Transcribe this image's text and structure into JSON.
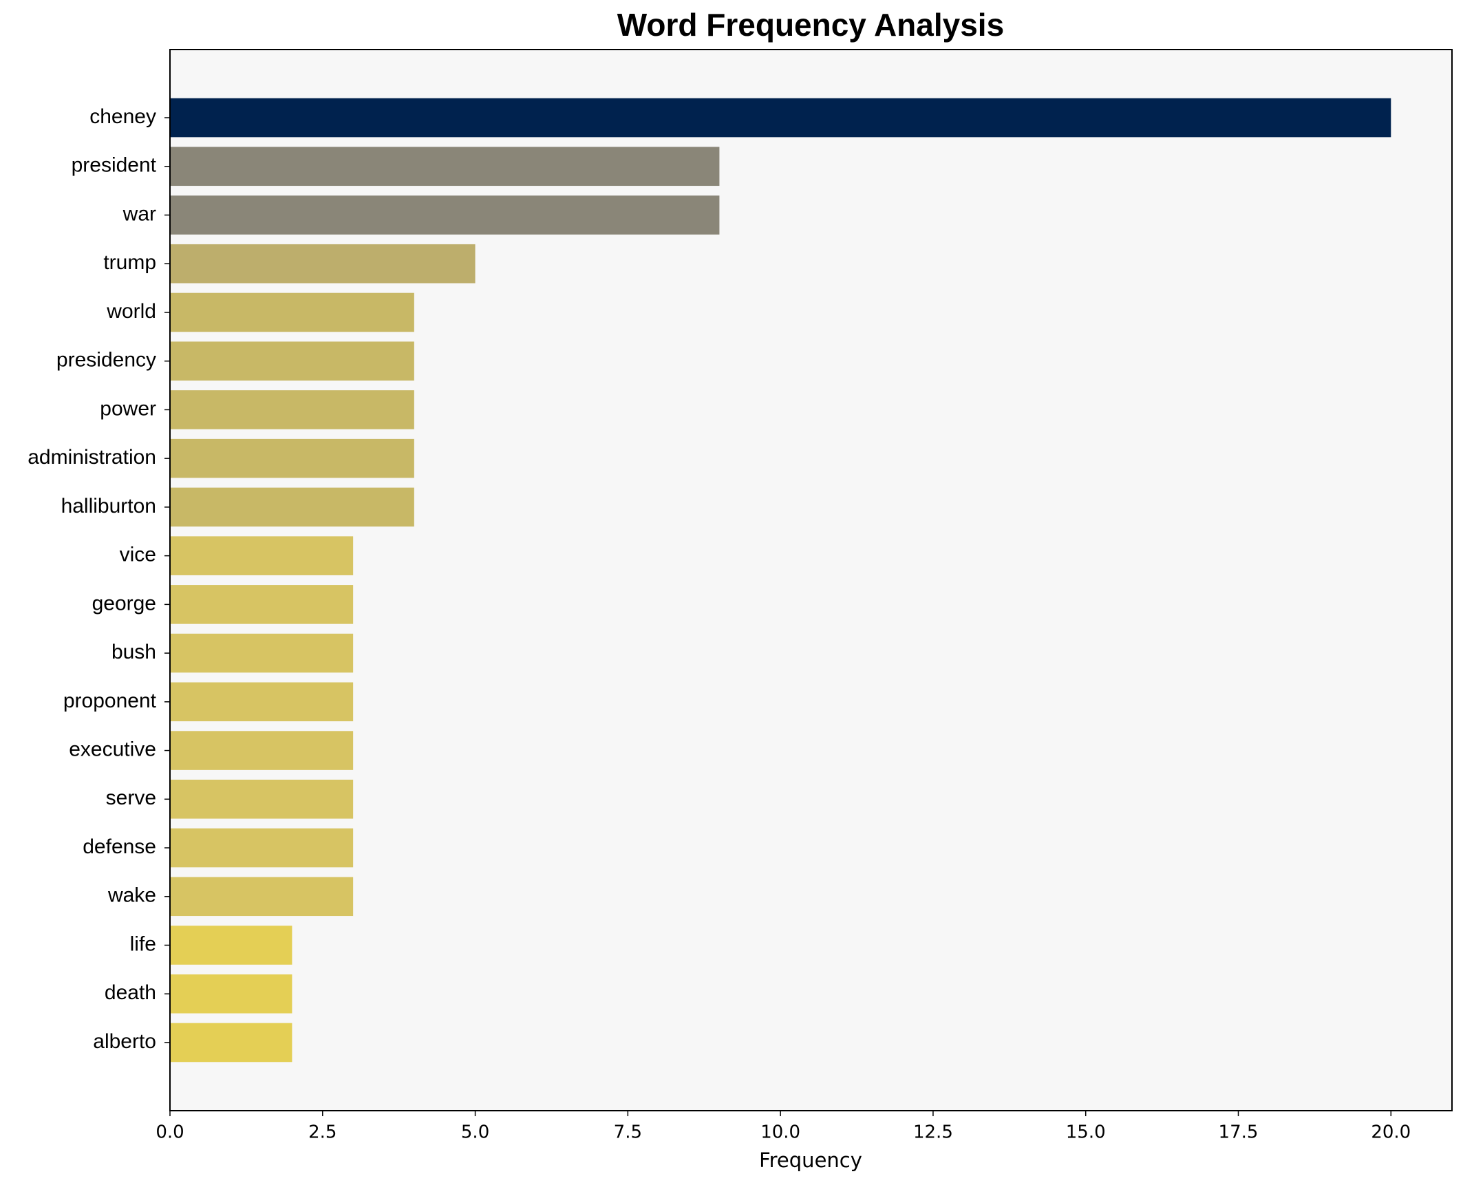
{
  "chart_data": {
    "type": "barh",
    "title": "Word Frequency Analysis",
    "xlabel": "Frequency",
    "categories": [
      "cheney",
      "president",
      "war",
      "trump",
      "world",
      "presidency",
      "power",
      "administration",
      "halliburton",
      "vice",
      "george",
      "bush",
      "proponent",
      "executive",
      "serve",
      "defense",
      "wake",
      "life",
      "death",
      "alberto"
    ],
    "values": [
      20,
      9,
      9,
      5,
      4,
      4,
      4,
      4,
      4,
      3,
      3,
      3,
      3,
      3,
      3,
      3,
      3,
      2,
      2,
      2
    ],
    "colors": [
      "#00224e",
      "#8a8678",
      "#8a8678",
      "#bdae6c",
      "#c8b866",
      "#c8b866",
      "#c8b866",
      "#c8b866",
      "#c8b866",
      "#d7c463",
      "#d7c463",
      "#d7c463",
      "#d7c463",
      "#d7c463",
      "#d7c463",
      "#d7c463",
      "#d7c463",
      "#e4cf55",
      "#e4cf55",
      "#e4cf55"
    ],
    "xlim": [
      0,
      21
    ],
    "xticks": [
      {
        "value": 0,
        "label": "0.0"
      },
      {
        "value": 2.5,
        "label": "2.5"
      },
      {
        "value": 5,
        "label": "5.0"
      },
      {
        "value": 7.5,
        "label": "7.5"
      },
      {
        "value": 10,
        "label": "10.0"
      },
      {
        "value": 12.5,
        "label": "12.5"
      },
      {
        "value": 15,
        "label": "15.0"
      },
      {
        "value": 17.5,
        "label": "17.5"
      },
      {
        "value": 20,
        "label": "20.0"
      }
    ]
  }
}
